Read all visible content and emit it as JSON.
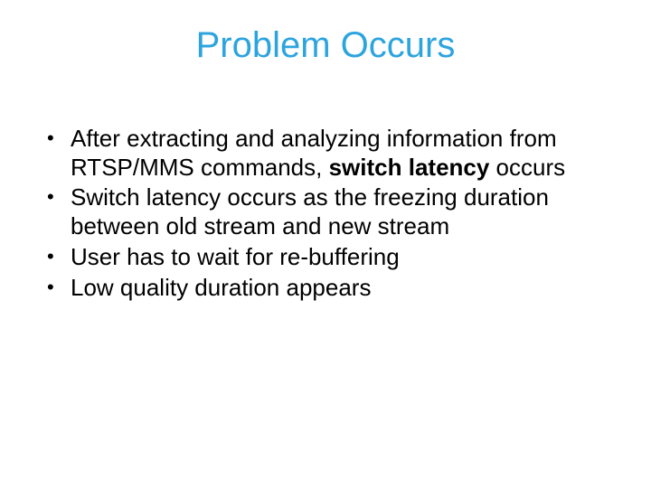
{
  "slide": {
    "title": "Problem Occurs",
    "title_color": "#2ca4de",
    "title_fontsize": 40,
    "body_fontsize": 26,
    "body_color": "#000000",
    "background_color": "#ffffff",
    "bullets": [
      {
        "pre": "After extracting and analyzing information from RTSP/MMS commands, ",
        "bold": "switch latency",
        "post": " occurs"
      },
      {
        "pre": "Switch latency occurs as the freezing duration between old stream and new stream",
        "bold": "",
        "post": ""
      },
      {
        "pre": "User has to wait for re-buffering",
        "bold": "",
        "post": ""
      },
      {
        "pre": "Low quality duration appears",
        "bold": "",
        "post": ""
      }
    ]
  }
}
